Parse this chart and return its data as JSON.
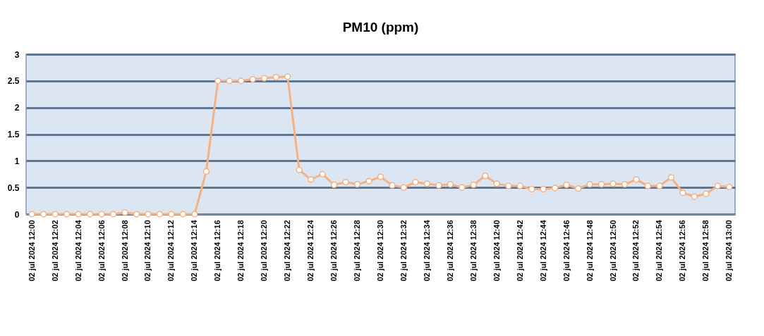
{
  "chart_data": {
    "type": "line",
    "title": "PM10 (ppm)",
    "categories": [
      "02 jul 2024 12:00",
      null,
      "02 jul 2024 12:02",
      null,
      "02 jul 2024 12:04",
      null,
      "02 jul 2024 12:06",
      null,
      "02 jul 2024 12:08",
      null,
      "02 jul 2024 12:10",
      null,
      "02 jul 2024 12:12",
      null,
      "02 jul 2024 12:14",
      null,
      "02 jul 2024 12:16",
      null,
      "02 jul 2024 12:18",
      null,
      "02 jul 2024 12:20",
      null,
      "02 jul 2024 12:22",
      null,
      "02 jul 2024 12:24",
      null,
      "02 jul 2024 12:26",
      null,
      "02 jul 2024 12:28",
      null,
      "02 jul 2024 12:30",
      null,
      "02 jul 2024 12:32",
      null,
      "02 jul 2024 12:34",
      null,
      "02 jul 2024 12:36",
      null,
      "02 jul 2024 12:38",
      null,
      "02 jul 2024 12:40",
      null,
      "02 jul 2024 12:42",
      null,
      "02 jul 2024 12:44",
      null,
      "02 jul 2024 12:46",
      null,
      "02 jul 2024 12:48",
      null,
      "02 jul 2024 12:50",
      null,
      "02 jul 2024 12:52",
      null,
      "02 jul 2024 12:54",
      null,
      "02 jul 2024 12:56",
      null,
      "02 jul 2024 12:58",
      null,
      "02 jul 2024 13:00"
    ],
    "series": [
      {
        "color": "#f4b183",
        "values": [
          0,
          0,
          0,
          0,
          0,
          0,
          0,
          0,
          0.03,
          0,
          0,
          0,
          0,
          0,
          0,
          0.8,
          2.5,
          2.5,
          2.5,
          2.53,
          2.55,
          2.57,
          2.58,
          0.83,
          0.65,
          0.75,
          0.55,
          0.6,
          0.56,
          0.62,
          0.7,
          0.54,
          0.5,
          0.6,
          0.57,
          0.54,
          0.56,
          0.5,
          0.55,
          0.72,
          0.57,
          0.53,
          0.53,
          0.47,
          0.47,
          0.49,
          0.55,
          0.48,
          0.56,
          0.56,
          0.57,
          0.56,
          0.65,
          0.53,
          0.53,
          0.69,
          0.4,
          0.33,
          0.38,
          0.53,
          0.51
        ]
      }
    ],
    "ylim": [
      0,
      3
    ],
    "yticks": [
      0,
      0.5,
      1,
      1.5,
      2,
      2.5,
      3
    ],
    "grid": "y",
    "marker": "circle",
    "line_style": "solid"
  }
}
